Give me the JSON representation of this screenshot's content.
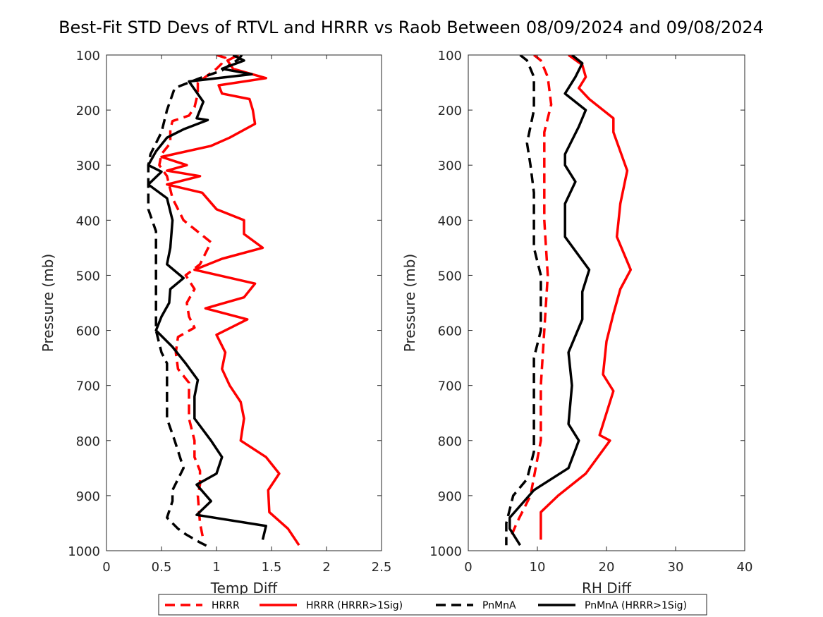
{
  "figure": {
    "title": "Best-Fit STD Devs of RTVL and HRRR vs Raob Between 08/09/2024 and 09/08/2024"
  },
  "legend": {
    "placement": "bottom-center",
    "entries": [
      {
        "label": "HRRR",
        "color": "#ff0000",
        "dash": true
      },
      {
        "label": "HRRR (HRRR>1Sig)",
        "color": "#ff0000",
        "dash": false
      },
      {
        "label": "PnMnA",
        "color": "#000000",
        "dash": true
      },
      {
        "label": "PnMnA (HRRR>1Sig)",
        "color": "#000000",
        "dash": false
      }
    ]
  },
  "chart_data": [
    {
      "type": "line",
      "xlabel": "Temp Diff",
      "ylabel": "Pressure (mb)",
      "xlim": [
        0,
        2.5
      ],
      "ylim": [
        100,
        1000
      ],
      "y_reversed": true,
      "xticks": [
        "0",
        "0.5",
        "1",
        "1.5",
        "2",
        "2.5"
      ],
      "xtick_values": [
        0,
        0.5,
        1,
        1.5,
        2,
        2.5
      ],
      "yticks": [
        "100",
        "200",
        "300",
        "400",
        "500",
        "600",
        "700",
        "800",
        "900",
        "1000"
      ],
      "ytick_values": [
        100,
        200,
        300,
        400,
        500,
        600,
        700,
        800,
        900,
        1000
      ],
      "series": [
        {
          "name": "HRRR",
          "color": "#ff0000",
          "dash": true,
          "points": [
            [
              1.0,
              100
            ],
            [
              1.08,
              105
            ],
            [
              1.05,
              115
            ],
            [
              1.0,
              125
            ],
            [
              0.83,
              150
            ],
            [
              0.83,
              170
            ],
            [
              0.8,
              195
            ],
            [
              0.75,
              210
            ],
            [
              0.6,
              220
            ],
            [
              0.58,
              235
            ],
            [
              0.58,
              260
            ],
            [
              0.5,
              280
            ],
            [
              0.48,
              300
            ],
            [
              0.55,
              320
            ],
            [
              0.6,
              360
            ],
            [
              0.7,
              400
            ],
            [
              0.95,
              440
            ],
            [
              0.9,
              460
            ],
            [
              0.85,
              480
            ],
            [
              0.72,
              500
            ],
            [
              0.8,
              525
            ],
            [
              0.73,
              550
            ],
            [
              0.75,
              575
            ],
            [
              0.8,
              595
            ],
            [
              0.65,
              612
            ],
            [
              0.63,
              640
            ],
            [
              0.65,
              670
            ],
            [
              0.75,
              695
            ],
            [
              0.75,
              725
            ],
            [
              0.75,
              760
            ],
            [
              0.8,
              800
            ],
            [
              0.8,
              830
            ],
            [
              0.85,
              855
            ],
            [
              0.85,
              880
            ],
            [
              0.83,
              900
            ],
            [
              0.85,
              950
            ],
            [
              0.88,
              980
            ]
          ]
        },
        {
          "name": "HRRR (HRRR>1Sig)",
          "color": "#ff0000",
          "dash": false,
          "points": [
            [
              1.2,
              100
            ],
            [
              1.1,
              110
            ],
            [
              1.15,
              125
            ],
            [
              1.45,
              142
            ],
            [
              1.02,
              155
            ],
            [
              1.05,
              170
            ],
            [
              1.3,
              180
            ],
            [
              1.33,
              200
            ],
            [
              1.35,
              225
            ],
            [
              1.12,
              250
            ],
            [
              0.95,
              265
            ],
            [
              0.5,
              285
            ],
            [
              0.73,
              300
            ],
            [
              0.55,
              310
            ],
            [
              0.85,
              320
            ],
            [
              0.55,
              335
            ],
            [
              0.87,
              350
            ],
            [
              1.0,
              380
            ],
            [
              1.25,
              400
            ],
            [
              1.25,
              425
            ],
            [
              1.42,
              450
            ],
            [
              1.05,
              470
            ],
            [
              0.8,
              490
            ],
            [
              1.35,
              515
            ],
            [
              1.25,
              540
            ],
            [
              0.9,
              560
            ],
            [
              1.28,
              580
            ],
            [
              1.0,
              608
            ],
            [
              1.08,
              640
            ],
            [
              1.05,
              670
            ],
            [
              1.12,
              700
            ],
            [
              1.22,
              730
            ],
            [
              1.25,
              760
            ],
            [
              1.22,
              800
            ],
            [
              1.45,
              830
            ],
            [
              1.57,
              860
            ],
            [
              1.47,
              890
            ],
            [
              1.48,
              930
            ],
            [
              1.65,
              960
            ],
            [
              1.75,
              990
            ]
          ]
        },
        {
          "name": "PnMnA",
          "color": "#000000",
          "dash": true,
          "points": [
            [
              1.23,
              100
            ],
            [
              1.2,
              108
            ],
            [
              1.12,
              118
            ],
            [
              1.05,
              128
            ],
            [
              0.85,
              142
            ],
            [
              0.62,
              160
            ],
            [
              0.55,
              200
            ],
            [
              0.5,
              240
            ],
            [
              0.4,
              280
            ],
            [
              0.38,
              300
            ],
            [
              0.38,
              320
            ],
            [
              0.38,
              380
            ],
            [
              0.45,
              420
            ],
            [
              0.45,
              500
            ],
            [
              0.45,
              600
            ],
            [
              0.5,
              640
            ],
            [
              0.55,
              660
            ],
            [
              0.55,
              700
            ],
            [
              0.55,
              760
            ],
            [
              0.62,
              800
            ],
            [
              0.7,
              850
            ],
            [
              0.6,
              890
            ],
            [
              0.6,
              910
            ],
            [
              0.55,
              940
            ],
            [
              0.65,
              960
            ],
            [
              0.72,
              970
            ],
            [
              0.85,
              985
            ],
            [
              0.95,
              995
            ]
          ]
        },
        {
          "name": "PnMnA (HRRR>1Sig)",
          "color": "#000000",
          "dash": false,
          "points": [
            [
              1.15,
              100
            ],
            [
              1.25,
              110
            ],
            [
              1.05,
              125
            ],
            [
              1.32,
              135
            ],
            [
              0.75,
              148
            ],
            [
              0.88,
              185
            ],
            [
              0.82,
              215
            ],
            [
              0.92,
              218
            ],
            [
              0.7,
              235
            ],
            [
              0.55,
              250
            ],
            [
              0.45,
              275
            ],
            [
              0.38,
              300
            ],
            [
              0.5,
              312
            ],
            [
              0.38,
              335
            ],
            [
              0.55,
              360
            ],
            [
              0.6,
              400
            ],
            [
              0.58,
              450
            ],
            [
              0.55,
              480
            ],
            [
              0.7,
              505
            ],
            [
              0.58,
              525
            ],
            [
              0.57,
              550
            ],
            [
              0.5,
              575
            ],
            [
              0.45,
              600
            ],
            [
              0.6,
              630
            ],
            [
              0.72,
              660
            ],
            [
              0.83,
              690
            ],
            [
              0.8,
              720
            ],
            [
              0.8,
              760
            ],
            [
              0.95,
              800
            ],
            [
              1.05,
              830
            ],
            [
              1.0,
              860
            ],
            [
              0.82,
              880
            ],
            [
              0.95,
              910
            ],
            [
              0.82,
              935
            ],
            [
              1.45,
              955
            ],
            [
              1.42,
              980
            ]
          ]
        }
      ]
    },
    {
      "type": "line",
      "xlabel": "RH Diff",
      "ylabel": "Pressure (mb)",
      "xlim": [
        0,
        40
      ],
      "ylim": [
        100,
        1000
      ],
      "y_reversed": true,
      "xticks": [
        "0",
        "10",
        "20",
        "30",
        "40"
      ],
      "xtick_values": [
        0,
        10,
        20,
        30,
        40
      ],
      "yticks": [
        "100",
        "200",
        "300",
        "400",
        "500",
        "600",
        "700",
        "800",
        "900",
        "1000"
      ],
      "ytick_values": [
        100,
        200,
        300,
        400,
        500,
        600,
        700,
        800,
        900,
        1000
      ],
      "series": [
        {
          "name": "HRRR",
          "color": "#ff0000",
          "dash": true,
          "points": [
            [
              9.5,
              100
            ],
            [
              10.5,
              110
            ],
            [
              11.5,
              140
            ],
            [
              12,
              190
            ],
            [
              11,
              240
            ],
            [
              11,
              300
            ],
            [
              11,
              400
            ],
            [
              11.5,
              500
            ],
            [
              11,
              600
            ],
            [
              10.5,
              700
            ],
            [
              10.5,
              800
            ],
            [
              9,
              900
            ],
            [
              7,
              950
            ],
            [
              6,
              980
            ]
          ]
        },
        {
          "name": "HRRR (HRRR>1Sig)",
          "color": "#ff0000",
          "dash": false,
          "points": [
            [
              14.5,
              100
            ],
            [
              16.5,
              118
            ],
            [
              17,
              140
            ],
            [
              16,
              160
            ],
            [
              17.5,
              180
            ],
            [
              21,
              215
            ],
            [
              21,
              240
            ],
            [
              22,
              275
            ],
            [
              23,
              310
            ],
            [
              22,
              370
            ],
            [
              21.5,
              430
            ],
            [
              23.5,
              490
            ],
            [
              22,
              525
            ],
            [
              21,
              570
            ],
            [
              20,
              620
            ],
            [
              19.5,
              680
            ],
            [
              21,
              710
            ],
            [
              19,
              790
            ],
            [
              20.5,
              800
            ],
            [
              17,
              860
            ],
            [
              13,
              900
            ],
            [
              10.5,
              930
            ],
            [
              10.5,
              980
            ]
          ]
        },
        {
          "name": "PnMnA",
          "color": "#000000",
          "dash": true,
          "points": [
            [
              7.5,
              100
            ],
            [
              8.5,
              110
            ],
            [
              9.5,
              140
            ],
            [
              9.5,
              200
            ],
            [
              8.5,
              260
            ],
            [
              9,
              300
            ],
            [
              9.5,
              350
            ],
            [
              9.5,
              450
            ],
            [
              10.5,
              500
            ],
            [
              10.5,
              600
            ],
            [
              9.5,
              650
            ],
            [
              9.5,
              750
            ],
            [
              9.5,
              820
            ],
            [
              8.5,
              870
            ],
            [
              6.5,
              900
            ],
            [
              5.5,
              950
            ],
            [
              5.5,
              990
            ]
          ]
        },
        {
          "name": "PnMnA (HRRR>1Sig)",
          "color": "#000000",
          "dash": false,
          "points": [
            [
              15,
              100
            ],
            [
              16.5,
              115
            ],
            [
              15.5,
              140
            ],
            [
              14,
              170
            ],
            [
              17,
              200
            ],
            [
              16,
              230
            ],
            [
              14,
              280
            ],
            [
              14,
              300
            ],
            [
              15.5,
              330
            ],
            [
              14,
              370
            ],
            [
              14,
              430
            ],
            [
              17.5,
              490
            ],
            [
              16.5,
              530
            ],
            [
              16.5,
              580
            ],
            [
              14.5,
              640
            ],
            [
              15,
              700
            ],
            [
              14.5,
              770
            ],
            [
              16,
              800
            ],
            [
              14.5,
              850
            ],
            [
              9.5,
              890
            ],
            [
              6,
              940
            ],
            [
              6,
              960
            ],
            [
              7.5,
              990
            ]
          ]
        }
      ]
    }
  ]
}
